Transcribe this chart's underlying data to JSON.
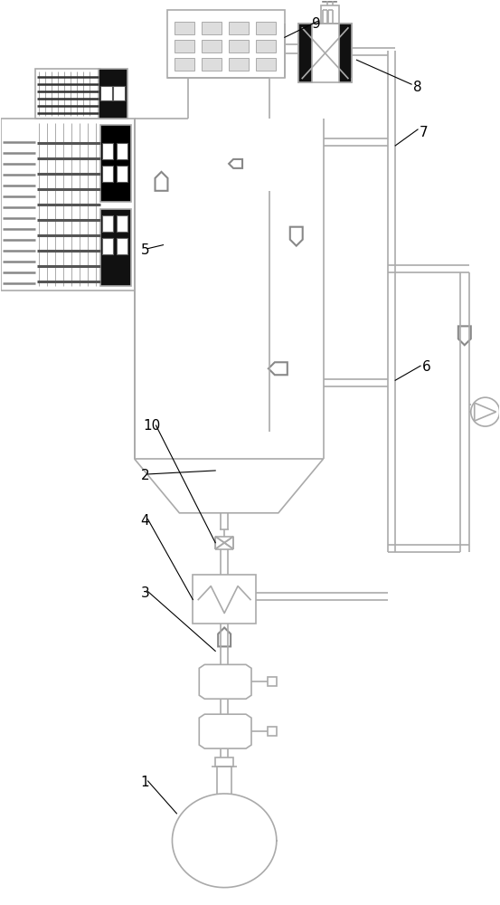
{
  "bg": "#ffffff",
  "lc": "#aaaaaa",
  "lc2": "#888888",
  "lw": 1.2,
  "lw2": 1.5,
  "fig_w": 5.53,
  "fig_h": 10.0,
  "dpi": 100
}
